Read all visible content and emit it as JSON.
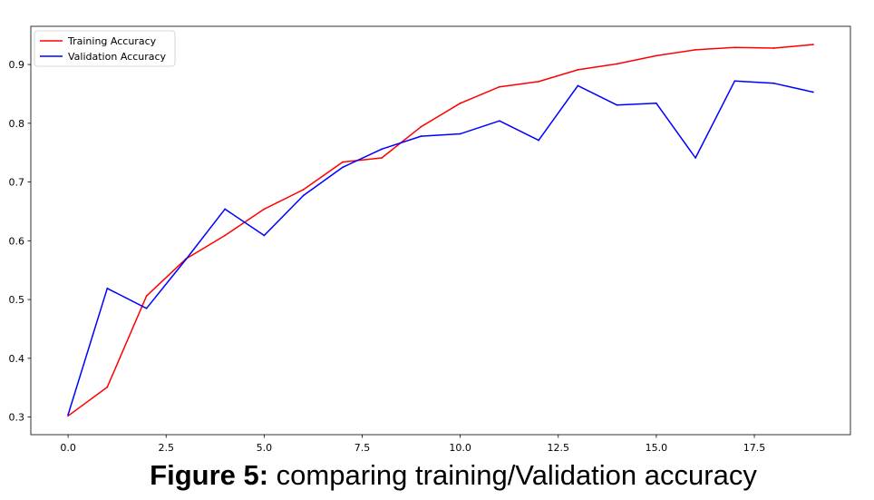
{
  "chart_data": {
    "type": "line",
    "title": "",
    "xlabel": "",
    "ylabel": "",
    "xlim": [
      -0.95,
      19.95
    ],
    "ylim": [
      0.27,
      0.965
    ],
    "xticks": [
      0.0,
      2.5,
      5.0,
      7.5,
      10.0,
      12.5,
      15.0,
      17.5
    ],
    "xtick_labels": [
      "0.0",
      "2.5",
      "5.0",
      "7.5",
      "10.0",
      "12.5",
      "15.0",
      "17.5"
    ],
    "yticks": [
      0.3,
      0.4,
      0.5,
      0.6,
      0.7,
      0.8,
      0.9
    ],
    "ytick_labels": [
      "0.3",
      "0.4",
      "0.5",
      "0.6",
      "0.7",
      "0.8",
      "0.9"
    ],
    "grid": false,
    "legend_position": "top-left",
    "x": [
      0,
      1,
      2,
      3,
      4,
      5,
      6,
      7,
      8,
      9,
      10,
      11,
      12,
      13,
      14,
      15,
      16,
      17,
      18,
      19
    ],
    "series": [
      {
        "name": "Training Accuracy",
        "color": "#ff0000",
        "values": [
          0.302,
          0.351,
          0.506,
          0.569,
          0.609,
          0.654,
          0.687,
          0.734,
          0.741,
          0.794,
          0.834,
          0.862,
          0.871,
          0.891,
          0.901,
          0.915,
          0.925,
          0.929,
          0.928,
          0.934
        ]
      },
      {
        "name": "Validation Accuracy",
        "color": "#0000ff",
        "values": [
          0.304,
          0.519,
          0.485,
          0.568,
          0.654,
          0.609,
          0.677,
          0.725,
          0.756,
          0.778,
          0.782,
          0.804,
          0.771,
          0.864,
          0.831,
          0.834,
          0.741,
          0.872,
          0.868,
          0.853
        ]
      }
    ]
  },
  "caption": {
    "label": "Figure 5:",
    "text": " comparing training/Validation accuracy"
  }
}
